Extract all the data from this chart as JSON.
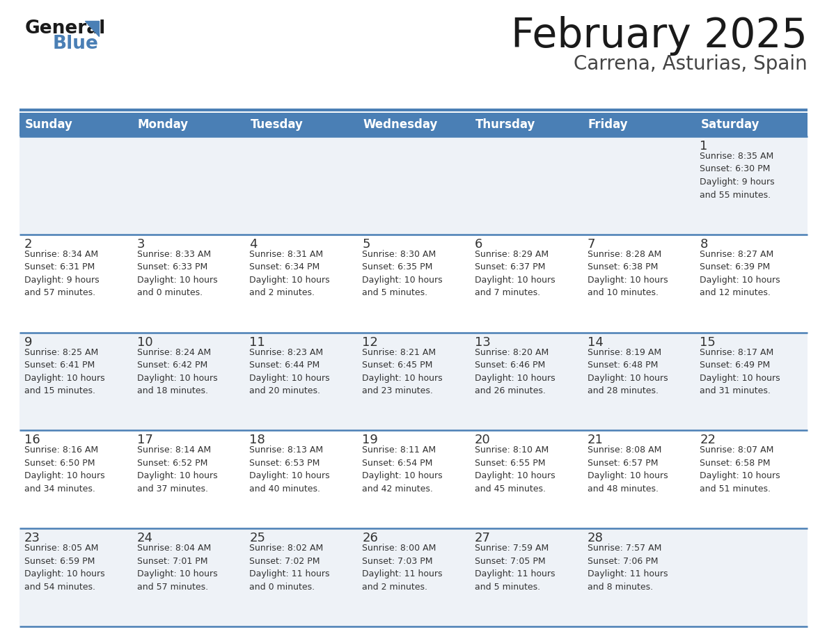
{
  "title": "February 2025",
  "subtitle": "Carrena, Asturias, Spain",
  "header_bg": "#4a7fb5",
  "header_text_color": "#ffffff",
  "day_names": [
    "Sunday",
    "Monday",
    "Tuesday",
    "Wednesday",
    "Thursday",
    "Friday",
    "Saturday"
  ],
  "row_bg_odd": "#eef2f7",
  "row_bg_even": "#ffffff",
  "cell_border_color": "#4a7fb5",
  "day_number_color": "#333333",
  "info_text_color": "#333333",
  "separator_color": "#4a7fb5",
  "calendar_data": [
    [
      {
        "day": null,
        "info": ""
      },
      {
        "day": null,
        "info": ""
      },
      {
        "day": null,
        "info": ""
      },
      {
        "day": null,
        "info": ""
      },
      {
        "day": null,
        "info": ""
      },
      {
        "day": null,
        "info": ""
      },
      {
        "day": 1,
        "info": "Sunrise: 8:35 AM\nSunset: 6:30 PM\nDaylight: 9 hours\nand 55 minutes."
      }
    ],
    [
      {
        "day": 2,
        "info": "Sunrise: 8:34 AM\nSunset: 6:31 PM\nDaylight: 9 hours\nand 57 minutes."
      },
      {
        "day": 3,
        "info": "Sunrise: 8:33 AM\nSunset: 6:33 PM\nDaylight: 10 hours\nand 0 minutes."
      },
      {
        "day": 4,
        "info": "Sunrise: 8:31 AM\nSunset: 6:34 PM\nDaylight: 10 hours\nand 2 minutes."
      },
      {
        "day": 5,
        "info": "Sunrise: 8:30 AM\nSunset: 6:35 PM\nDaylight: 10 hours\nand 5 minutes."
      },
      {
        "day": 6,
        "info": "Sunrise: 8:29 AM\nSunset: 6:37 PM\nDaylight: 10 hours\nand 7 minutes."
      },
      {
        "day": 7,
        "info": "Sunrise: 8:28 AM\nSunset: 6:38 PM\nDaylight: 10 hours\nand 10 minutes."
      },
      {
        "day": 8,
        "info": "Sunrise: 8:27 AM\nSunset: 6:39 PM\nDaylight: 10 hours\nand 12 minutes."
      }
    ],
    [
      {
        "day": 9,
        "info": "Sunrise: 8:25 AM\nSunset: 6:41 PM\nDaylight: 10 hours\nand 15 minutes."
      },
      {
        "day": 10,
        "info": "Sunrise: 8:24 AM\nSunset: 6:42 PM\nDaylight: 10 hours\nand 18 minutes."
      },
      {
        "day": 11,
        "info": "Sunrise: 8:23 AM\nSunset: 6:44 PM\nDaylight: 10 hours\nand 20 minutes."
      },
      {
        "day": 12,
        "info": "Sunrise: 8:21 AM\nSunset: 6:45 PM\nDaylight: 10 hours\nand 23 minutes."
      },
      {
        "day": 13,
        "info": "Sunrise: 8:20 AM\nSunset: 6:46 PM\nDaylight: 10 hours\nand 26 minutes."
      },
      {
        "day": 14,
        "info": "Sunrise: 8:19 AM\nSunset: 6:48 PM\nDaylight: 10 hours\nand 28 minutes."
      },
      {
        "day": 15,
        "info": "Sunrise: 8:17 AM\nSunset: 6:49 PM\nDaylight: 10 hours\nand 31 minutes."
      }
    ],
    [
      {
        "day": 16,
        "info": "Sunrise: 8:16 AM\nSunset: 6:50 PM\nDaylight: 10 hours\nand 34 minutes."
      },
      {
        "day": 17,
        "info": "Sunrise: 8:14 AM\nSunset: 6:52 PM\nDaylight: 10 hours\nand 37 minutes."
      },
      {
        "day": 18,
        "info": "Sunrise: 8:13 AM\nSunset: 6:53 PM\nDaylight: 10 hours\nand 40 minutes."
      },
      {
        "day": 19,
        "info": "Sunrise: 8:11 AM\nSunset: 6:54 PM\nDaylight: 10 hours\nand 42 minutes."
      },
      {
        "day": 20,
        "info": "Sunrise: 8:10 AM\nSunset: 6:55 PM\nDaylight: 10 hours\nand 45 minutes."
      },
      {
        "day": 21,
        "info": "Sunrise: 8:08 AM\nSunset: 6:57 PM\nDaylight: 10 hours\nand 48 minutes."
      },
      {
        "day": 22,
        "info": "Sunrise: 8:07 AM\nSunset: 6:58 PM\nDaylight: 10 hours\nand 51 minutes."
      }
    ],
    [
      {
        "day": 23,
        "info": "Sunrise: 8:05 AM\nSunset: 6:59 PM\nDaylight: 10 hours\nand 54 minutes."
      },
      {
        "day": 24,
        "info": "Sunrise: 8:04 AM\nSunset: 7:01 PM\nDaylight: 10 hours\nand 57 minutes."
      },
      {
        "day": 25,
        "info": "Sunrise: 8:02 AM\nSunset: 7:02 PM\nDaylight: 11 hours\nand 0 minutes."
      },
      {
        "day": 26,
        "info": "Sunrise: 8:00 AM\nSunset: 7:03 PM\nDaylight: 11 hours\nand 2 minutes."
      },
      {
        "day": 27,
        "info": "Sunrise: 7:59 AM\nSunset: 7:05 PM\nDaylight: 11 hours\nand 5 minutes."
      },
      {
        "day": 28,
        "info": "Sunrise: 7:57 AM\nSunset: 7:06 PM\nDaylight: 11 hours\nand 8 minutes."
      },
      {
        "day": null,
        "info": ""
      }
    ]
  ],
  "logo_text_general": "General",
  "logo_text_blue": "Blue",
  "logo_triangle_color": "#4a7fb5",
  "title_fontsize": 42,
  "subtitle_fontsize": 20,
  "header_fontsize": 12,
  "day_num_fontsize": 13,
  "info_fontsize": 9
}
